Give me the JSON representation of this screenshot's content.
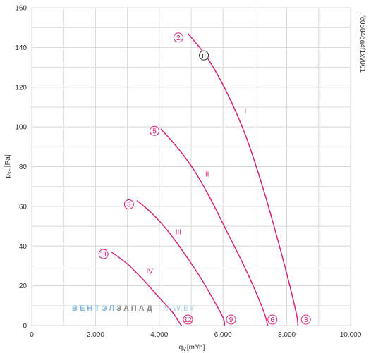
{
  "chart_data": {
    "type": "line",
    "xlabel_main": "q",
    "xlabel_sub": "V",
    "xlabel_unit": "[m³/h]",
    "ylabel_main": "p",
    "ylabel_sub": "sF",
    "ylabel_unit": "[Pa]",
    "xlim": [
      0,
      10000
    ],
    "ylim": [
      0,
      160
    ],
    "x_ticks": [
      0,
      2000,
      4000,
      6000,
      8000,
      10000
    ],
    "x_tick_labels": [
      "0",
      "2.000",
      "4.000",
      "6.000",
      "8.000",
      "10.000"
    ],
    "y_ticks": [
      0,
      20,
      40,
      60,
      80,
      100,
      120,
      140,
      160
    ],
    "y_tick_labels": [
      "0",
      "20",
      "40",
      "60",
      "80",
      "100",
      "120",
      "140",
      "160"
    ],
    "grid": true,
    "curve_color": "#d4237a",
    "marker_color": "#d4237a",
    "series": [
      {
        "name": "I",
        "points": [
          [
            4900,
            147
          ],
          [
            5500,
            135
          ],
          [
            6100,
            118
          ],
          [
            6700,
            96
          ],
          [
            7200,
            72
          ],
          [
            7600,
            50
          ],
          [
            8000,
            26
          ],
          [
            8300,
            6
          ],
          [
            8350,
            0
          ]
        ]
      },
      {
        "name": "II",
        "points": [
          [
            4050,
            99
          ],
          [
            4600,
            89
          ],
          [
            5100,
            78
          ],
          [
            5600,
            64
          ],
          [
            6100,
            48
          ],
          [
            6600,
            32
          ],
          [
            7000,
            18
          ],
          [
            7300,
            6
          ],
          [
            7400,
            0
          ]
        ]
      },
      {
        "name": "III",
        "points": [
          [
            3300,
            63
          ],
          [
            3800,
            56
          ],
          [
            4300,
            47
          ],
          [
            4800,
            36
          ],
          [
            5300,
            24
          ],
          [
            5700,
            13
          ],
          [
            6000,
            4
          ],
          [
            6050,
            0
          ]
        ]
      },
      {
        "name": "IV",
        "points": [
          [
            2500,
            37
          ],
          [
            3000,
            31
          ],
          [
            3500,
            23
          ],
          [
            4000,
            14
          ],
          [
            4400,
            7
          ],
          [
            4650,
            1
          ],
          [
            4700,
            0
          ]
        ]
      }
    ],
    "series_labels": [
      {
        "text": "I",
        "x": 6700,
        "y": 107
      },
      {
        "text": "II",
        "x": 5500,
        "y": 75
      },
      {
        "text": "III",
        "x": 4600,
        "y": 46
      },
      {
        "text": "IV",
        "x": 3700,
        "y": 26
      }
    ],
    "markers": [
      {
        "text": "2",
        "x": 4600,
        "y": 145,
        "color": "#d4237a"
      },
      {
        "text": "п",
        "x": 5400,
        "y": 136,
        "color": "#333333"
      },
      {
        "text": "5",
        "x": 3850,
        "y": 98,
        "color": "#d4237a"
      },
      {
        "text": "8",
        "x": 3050,
        "y": 61,
        "color": "#d4237a"
      },
      {
        "text": "11",
        "x": 2250,
        "y": 36,
        "color": "#d4237a"
      },
      {
        "text": "12",
        "x": 4900,
        "y": 3,
        "color": "#d4237a"
      },
      {
        "text": "9",
        "x": 6250,
        "y": 3,
        "color": "#d4237a"
      },
      {
        "text": "6",
        "x": 7550,
        "y": 3,
        "color": "#d4237a"
      },
      {
        "text": "3",
        "x": 8600,
        "y": 3,
        "color": "#d4237a"
      }
    ],
    "code_label": "fc0504da4f1xv001"
  },
  "watermark": {
    "part1": "ВЕНТЭЛ",
    "part2": "ЗАПАД",
    "part3": "V-W.BY",
    "color1": "#7db8e0",
    "color2": "#8a8a8a",
    "color3": "#a8cfe9"
  }
}
